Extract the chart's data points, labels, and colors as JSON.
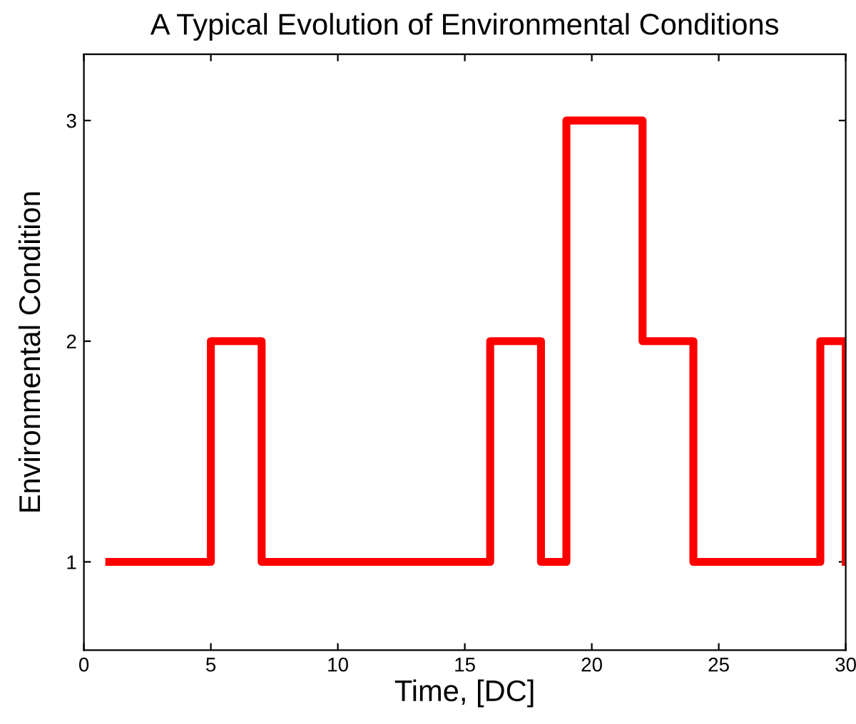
{
  "chart_data": {
    "type": "step",
    "title": "A Typical Evolution of Environmental Conditions",
    "xlabel": "Time, [DC]",
    "ylabel": "Environmental Condition",
    "x": [
      1,
      5,
      7,
      16,
      18,
      19,
      22,
      24,
      29,
      30
    ],
    "series": [
      {
        "color": "#ff0000",
        "values": [
          1,
          2,
          1,
          2,
          1,
          3,
          2,
          1,
          2,
          1
        ]
      }
    ],
    "xlim": [
      0,
      30
    ],
    "xticks": [
      0,
      5,
      10,
      15,
      20,
      25,
      30
    ],
    "ylim": [
      0.6,
      3.3
    ],
    "yticks": [
      1,
      2,
      3
    ],
    "grid": false,
    "legend": false,
    "marker": "none",
    "line_style": "solid"
  }
}
